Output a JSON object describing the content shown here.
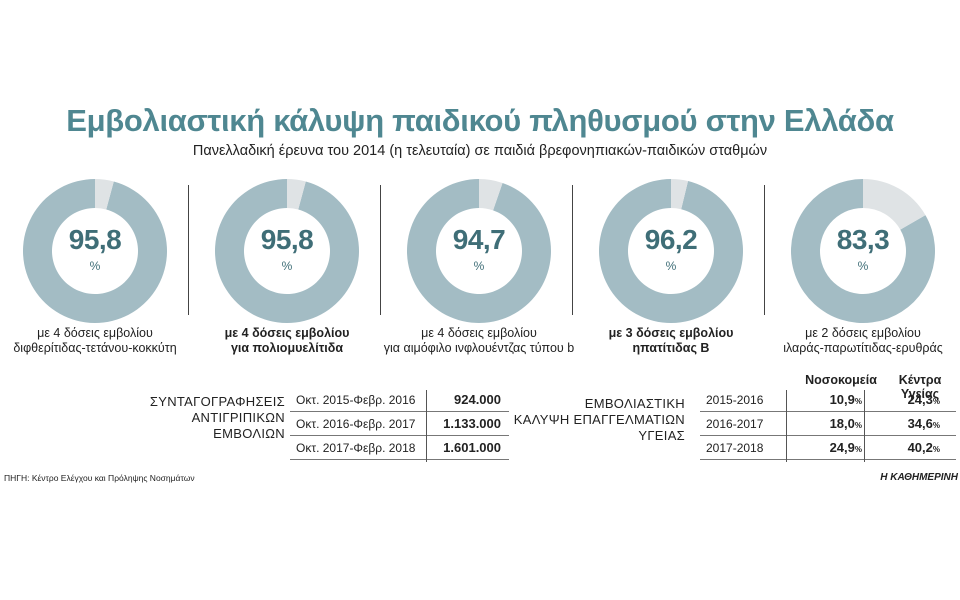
{
  "header": {
    "title": "Εμβολιαστική κάλυψη παιδικού πληθυσμού στην Ελλάδα",
    "subtitle": "Πανελλαδική έρευνα του 2014 (η τελευταία) σε παιδιά βρεφονηπιακών-παιδικών σταθμών"
  },
  "chart_data": [
    {
      "type": "pie",
      "style": "donut",
      "colors": {
        "main": "#a3bcc4",
        "rest": "#dfe3e5",
        "text": "#3f6e77"
      },
      "unit": "%",
      "donuts": [
        {
          "value": 95.8,
          "label_value": "95,8",
          "caption": [
            "με 4 δόσεις εμβολίου",
            "διφθερίτιδας-τετάνου-κοκκύτη"
          ],
          "bold": false
        },
        {
          "value": 95.8,
          "label_value": "95,8",
          "caption": [
            "με 4 δόσεις εμβολίου",
            "για πολιομυελίτιδα"
          ],
          "bold": true
        },
        {
          "value": 94.7,
          "label_value": "94,7",
          "caption": [
            "με 4 δόσεις εμβολίου",
            "για αιμόφιλο ινφλουέντζας τύπου b"
          ],
          "bold": false
        },
        {
          "value": 96.2,
          "label_value": "96,2",
          "caption": [
            "με 3 δόσεις εμβολίου",
            "ηπατίτιδας Β"
          ],
          "bold": true
        },
        {
          "value": 83.3,
          "label_value": "83,3",
          "caption": [
            "με 2 δόσεις εμβολίου",
            "ιλαράς-παρωτίτιδας-ερυθράς"
          ],
          "bold": false
        }
      ]
    },
    {
      "type": "table",
      "label": [
        "ΣΥΝΤΑΓΟΓΡΑΦΗΣΕΙΣ",
        "ΑΝΤΙΓΡΙΠΙΚΩΝ",
        "ΕΜΒΟΛΙΩΝ"
      ],
      "rows": [
        {
          "period": "Οκτ. 2015-Φεβρ. 2016",
          "value": "924.000"
        },
        {
          "period": "Οκτ. 2016-Φεβρ. 2017",
          "value": "1.133.000"
        },
        {
          "period": "Οκτ. 2017-Φεβρ. 2018",
          "value": "1.601.000"
        }
      ]
    },
    {
      "type": "table",
      "label": [
        "ΕΜΒΟΛΙΑΣΤΙΚΗ",
        "ΚΑΛΥΨΗ ΕΠΑΓΓΕΛΜΑΤΙΩΝ",
        "ΥΓΕΙΑΣ"
      ],
      "columns": [
        "Νοσοκομεία",
        "Κέντρα Υγείας"
      ],
      "unit": "%",
      "rows": [
        {
          "period": "2015-2016",
          "values": [
            "10,9",
            "24,3"
          ]
        },
        {
          "period": "2016-2017",
          "values": [
            "18,0",
            "34,6"
          ]
        },
        {
          "period": "2017-2018",
          "values": [
            "24,9",
            "40,2"
          ]
        }
      ]
    }
  ],
  "footer": {
    "source": "ΠΗΓΗ: Κέντρο Ελέγχου και Πρόληψης Νοσημάτων",
    "brand": "Η ΚΑΘΗΜΕΡΙΝΗ"
  }
}
